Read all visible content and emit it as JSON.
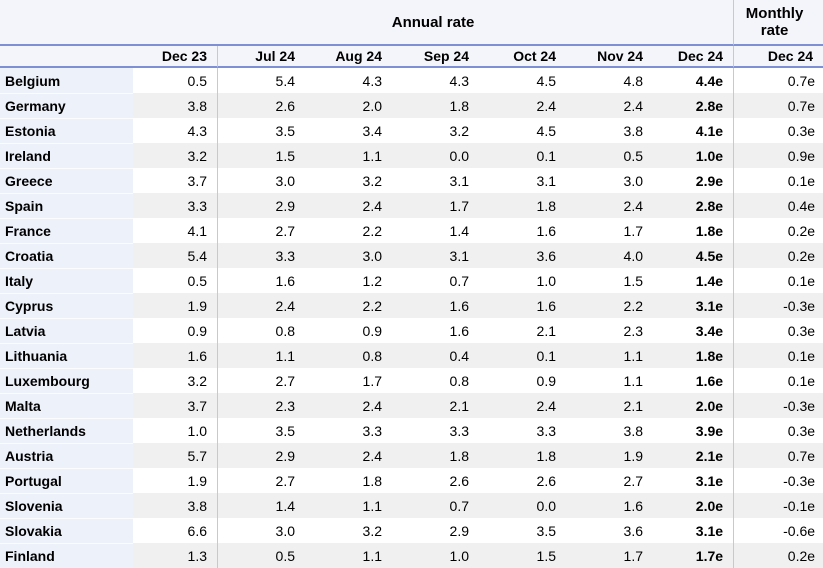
{
  "colors": {
    "accent_line": "#7d90d4",
    "header_bg": "#f4f5fb",
    "country_column_bg": "#edf1fa",
    "alt_row_bg": "#f0f0f0",
    "column_separator": "#c9c9c9",
    "text": "#000000"
  },
  "chart_data": {
    "type": "table",
    "title": "Annual rate",
    "monthly_title": "Monthly rate",
    "annual_columns": [
      "Dec 23",
      "Jul 24",
      "Aug 24",
      "Sep 24",
      "Oct 24",
      "Nov 24",
      "Dec 24"
    ],
    "monthly_column": "Dec 24",
    "rows": [
      {
        "country": "Belgium",
        "annual": [
          "0.5",
          "5.4",
          "4.3",
          "4.3",
          "4.5",
          "4.8",
          "4.4e"
        ],
        "monthly": "0.7e"
      },
      {
        "country": "Germany",
        "annual": [
          "3.8",
          "2.6",
          "2.0",
          "1.8",
          "2.4",
          "2.4",
          "2.8e"
        ],
        "monthly": "0.7e"
      },
      {
        "country": "Estonia",
        "annual": [
          "4.3",
          "3.5",
          "3.4",
          "3.2",
          "4.5",
          "3.8",
          "4.1e"
        ],
        "monthly": "0.3e"
      },
      {
        "country": "Ireland",
        "annual": [
          "3.2",
          "1.5",
          "1.1",
          "0.0",
          "0.1",
          "0.5",
          "1.0e"
        ],
        "monthly": "0.9e"
      },
      {
        "country": "Greece",
        "annual": [
          "3.7",
          "3.0",
          "3.2",
          "3.1",
          "3.1",
          "3.0",
          "2.9e"
        ],
        "monthly": "0.1e"
      },
      {
        "country": "Spain",
        "annual": [
          "3.3",
          "2.9",
          "2.4",
          "1.7",
          "1.8",
          "2.4",
          "2.8e"
        ],
        "monthly": "0.4e"
      },
      {
        "country": "France",
        "annual": [
          "4.1",
          "2.7",
          "2.2",
          "1.4",
          "1.6",
          "1.7",
          "1.8e"
        ],
        "monthly": "0.2e"
      },
      {
        "country": "Croatia",
        "annual": [
          "5.4",
          "3.3",
          "3.0",
          "3.1",
          "3.6",
          "4.0",
          "4.5e"
        ],
        "monthly": "0.2e"
      },
      {
        "country": "Italy",
        "annual": [
          "0.5",
          "1.6",
          "1.2",
          "0.7",
          "1.0",
          "1.5",
          "1.4e"
        ],
        "monthly": "0.1e"
      },
      {
        "country": "Cyprus",
        "annual": [
          "1.9",
          "2.4",
          "2.2",
          "1.6",
          "1.6",
          "2.2",
          "3.1e"
        ],
        "monthly": "-0.3e"
      },
      {
        "country": "Latvia",
        "annual": [
          "0.9",
          "0.8",
          "0.9",
          "1.6",
          "2.1",
          "2.3",
          "3.4e"
        ],
        "monthly": "0.3e"
      },
      {
        "country": "Lithuania",
        "annual": [
          "1.6",
          "1.1",
          "0.8",
          "0.4",
          "0.1",
          "1.1",
          "1.8e"
        ],
        "monthly": "0.1e"
      },
      {
        "country": "Luxembourg",
        "annual": [
          "3.2",
          "2.7",
          "1.7",
          "0.8",
          "0.9",
          "1.1",
          "1.6e"
        ],
        "monthly": "0.1e"
      },
      {
        "country": "Malta",
        "annual": [
          "3.7",
          "2.3",
          "2.4",
          "2.1",
          "2.4",
          "2.1",
          "2.0e"
        ],
        "monthly": "-0.3e"
      },
      {
        "country": "Netherlands",
        "annual": [
          "1.0",
          "3.5",
          "3.3",
          "3.3",
          "3.3",
          "3.8",
          "3.9e"
        ],
        "monthly": "0.3e"
      },
      {
        "country": "Austria",
        "annual": [
          "5.7",
          "2.9",
          "2.4",
          "1.8",
          "1.8",
          "1.9",
          "2.1e"
        ],
        "monthly": "0.7e"
      },
      {
        "country": "Portugal",
        "annual": [
          "1.9",
          "2.7",
          "1.8",
          "2.6",
          "2.6",
          "2.7",
          "3.1e"
        ],
        "monthly": "-0.3e"
      },
      {
        "country": "Slovenia",
        "annual": [
          "3.8",
          "1.4",
          "1.1",
          "0.7",
          "0.0",
          "1.6",
          "2.0e"
        ],
        "monthly": "-0.1e"
      },
      {
        "country": "Slovakia",
        "annual": [
          "6.6",
          "3.0",
          "3.2",
          "2.9",
          "3.5",
          "3.6",
          "3.1e"
        ],
        "monthly": "-0.6e"
      },
      {
        "country": "Finland",
        "annual": [
          "1.3",
          "0.5",
          "1.1",
          "1.0",
          "1.5",
          "1.7",
          "1.7e"
        ],
        "monthly": "0.2e"
      }
    ]
  }
}
